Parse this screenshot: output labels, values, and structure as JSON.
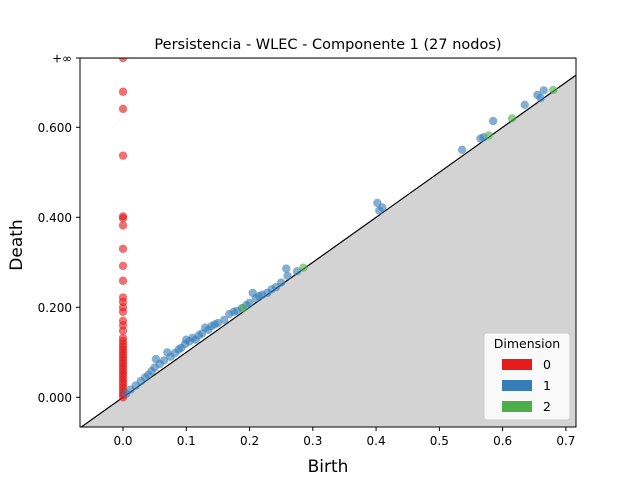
{
  "chart_data": {
    "type": "scatter",
    "title": "Persistencia - WLEC - Componente 1 (27 nodos)",
    "xlabel": "Birth",
    "ylabel": "Death",
    "xlim": [
      -0.068,
      0.716
    ],
    "ylim": [
      -0.066,
      0.754
    ],
    "x_ticks": [
      {
        "value": 0.0,
        "label": "0.0"
      },
      {
        "value": 0.1,
        "label": "0.1"
      },
      {
        "value": 0.2,
        "label": "0.2"
      },
      {
        "value": 0.3,
        "label": "0.3"
      },
      {
        "value": 0.4,
        "label": "0.4"
      },
      {
        "value": 0.5,
        "label": "0.5"
      },
      {
        "value": 0.6,
        "label": "0.6"
      },
      {
        "value": 0.7,
        "label": "0.7"
      }
    ],
    "y_ticks": [
      {
        "value": 0.0,
        "label": "0.000"
      },
      {
        "value": 0.2,
        "label": "0.200"
      },
      {
        "value": 0.4,
        "label": "0.400"
      },
      {
        "value": 0.6,
        "label": "0.600"
      }
    ],
    "infinity_line": {
      "value": 0.754,
      "label": "+∞"
    },
    "diagonal": true,
    "legend": {
      "title": "Dimension",
      "placement": "bottom-right",
      "entries": [
        {
          "label": "0",
          "color": "#e41a1c"
        },
        {
          "label": "1",
          "color": "#377eb8"
        },
        {
          "label": "2",
          "color": "#4daf4a"
        }
      ]
    },
    "series": [
      {
        "name": "0",
        "color": "#e41a1c",
        "points": [
          [
            0,
            0.754
          ],
          [
            0,
            0.679
          ],
          [
            0,
            0.641
          ],
          [
            0,
            0.537
          ],
          [
            0,
            0.402
          ],
          [
            0,
            0.398
          ],
          [
            0,
            0.382
          ],
          [
            0,
            0.33
          ],
          [
            0,
            0.292
          ],
          [
            0,
            0.259
          ],
          [
            0,
            0.222
          ],
          [
            0,
            0.212
          ],
          [
            0,
            0.2
          ],
          [
            0,
            0.19
          ],
          [
            0,
            0.17
          ],
          [
            0,
            0.16
          ],
          [
            0,
            0.148
          ],
          [
            0,
            0.132
          ],
          [
            0,
            0.125
          ],
          [
            0,
            0.118
          ],
          [
            0,
            0.112
          ],
          [
            0,
            0.106
          ],
          [
            0,
            0.1
          ],
          [
            0,
            0.094
          ],
          [
            0,
            0.088
          ],
          [
            0,
            0.082
          ],
          [
            0,
            0.076
          ],
          [
            0,
            0.07
          ],
          [
            0,
            0.064
          ],
          [
            0,
            0.058
          ],
          [
            0,
            0.052
          ],
          [
            0,
            0.046
          ],
          [
            0,
            0.04
          ],
          [
            0,
            0.034
          ],
          [
            0,
            0.028
          ],
          [
            0,
            0.022
          ],
          [
            0,
            0.016
          ],
          [
            0,
            0.01
          ],
          [
            0,
            0.005
          ],
          [
            0,
            0.0
          ]
        ]
      },
      {
        "name": "1",
        "color": "#377eb8",
        "points": [
          [
            0.005,
            0.008
          ],
          [
            0.012,
            0.017
          ],
          [
            0.02,
            0.026
          ],
          [
            0.028,
            0.036
          ],
          [
            0.035,
            0.044
          ],
          [
            0.04,
            0.05
          ],
          [
            0.045,
            0.058
          ],
          [
            0.05,
            0.066
          ],
          [
            0.052,
            0.085
          ],
          [
            0.058,
            0.074
          ],
          [
            0.065,
            0.082
          ],
          [
            0.07,
            0.1
          ],
          [
            0.075,
            0.09
          ],
          [
            0.082,
            0.098
          ],
          [
            0.088,
            0.106
          ],
          [
            0.092,
            0.11
          ],
          [
            0.098,
            0.118
          ],
          [
            0.1,
            0.128
          ],
          [
            0.105,
            0.124
          ],
          [
            0.11,
            0.132
          ],
          [
            0.115,
            0.128
          ],
          [
            0.12,
            0.138
          ],
          [
            0.125,
            0.142
          ],
          [
            0.13,
            0.155
          ],
          [
            0.135,
            0.15
          ],
          [
            0.14,
            0.158
          ],
          [
            0.145,
            0.162
          ],
          [
            0.15,
            0.165
          ],
          [
            0.16,
            0.172
          ],
          [
            0.168,
            0.185
          ],
          [
            0.175,
            0.19
          ],
          [
            0.18,
            0.192
          ],
          [
            0.188,
            0.198
          ],
          [
            0.195,
            0.205
          ],
          [
            0.2,
            0.21
          ],
          [
            0.205,
            0.232
          ],
          [
            0.21,
            0.22
          ],
          [
            0.215,
            0.225
          ],
          [
            0.22,
            0.228
          ],
          [
            0.228,
            0.232
          ],
          [
            0.235,
            0.24
          ],
          [
            0.242,
            0.245
          ],
          [
            0.25,
            0.255
          ],
          [
            0.258,
            0.286
          ],
          [
            0.26,
            0.27
          ],
          [
            0.275,
            0.28
          ],
          [
            0.402,
            0.432
          ],
          [
            0.405,
            0.415
          ],
          [
            0.41,
            0.422
          ],
          [
            0.536,
            0.55
          ],
          [
            0.565,
            0.575
          ],
          [
            0.57,
            0.578
          ],
          [
            0.585,
            0.614
          ],
          [
            0.635,
            0.65
          ],
          [
            0.655,
            0.672
          ],
          [
            0.66,
            0.665
          ],
          [
            0.665,
            0.682
          ]
        ]
      },
      {
        "name": "2",
        "color": "#4daf4a",
        "points": [
          [
            0.19,
            0.198
          ],
          [
            0.285,
            0.288
          ],
          [
            0.578,
            0.582
          ],
          [
            0.615,
            0.62
          ],
          [
            0.68,
            0.683
          ]
        ]
      }
    ]
  }
}
